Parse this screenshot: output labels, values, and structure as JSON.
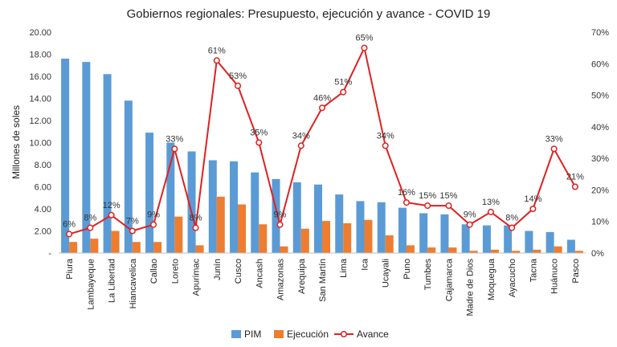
{
  "chart_data": {
    "type": "bar",
    "title": "Gobiernos regionales: Presupuesto, ejecución y avance - COVID 19",
    "ylabel": "Millones de soles",
    "y2label": "",
    "ylim": [
      0,
      20
    ],
    "y2lim": [
      0,
      70
    ],
    "y_ticks": [
      "-",
      "2.00",
      "4.00",
      "6.00",
      "8.00",
      "10.00",
      "12.00",
      "14.00",
      "16.00",
      "18.00",
      "20.00"
    ],
    "y2_ticks": [
      "0%",
      "10%",
      "20%",
      "30%",
      "40%",
      "50%",
      "60%",
      "70%"
    ],
    "grid": false,
    "legend_position": "bottom",
    "categories": [
      "Piura",
      "Lambayeque",
      "La Libertad",
      "Hiancavelica",
      "Callao",
      "Loreto",
      "Apurimac",
      "Junín",
      "Cusco",
      "Ancash",
      "Amazonas",
      "Arequipa",
      "San Martín",
      "Lima",
      "Ica",
      "Ucayali",
      "Puno",
      "Tumbes",
      "Cajamarca",
      "Madre de Dios",
      "Moquegua",
      "Ayacucho",
      "Tacna",
      "Huánuco",
      "Pasco"
    ],
    "series": [
      {
        "name": "PIM",
        "kind": "bar",
        "axis": "left",
        "color": "#5b9bd5",
        "values": [
          17.6,
          17.3,
          16.2,
          13.8,
          10.9,
          10.0,
          9.2,
          8.4,
          8.3,
          7.3,
          6.7,
          6.4,
          6.2,
          5.3,
          4.7,
          4.6,
          4.1,
          3.6,
          3.5,
          2.6,
          2.5,
          2.5,
          2.0,
          1.9,
          1.2
        ]
      },
      {
        "name": "Ejecución",
        "kind": "bar",
        "axis": "left",
        "color": "#ed7d31",
        "values": [
          1.0,
          1.3,
          2.0,
          1.0,
          1.0,
          3.3,
          0.7,
          5.1,
          4.4,
          2.6,
          0.6,
          2.2,
          2.9,
          2.7,
          3.0,
          1.6,
          0.7,
          0.5,
          0.5,
          0.2,
          0.3,
          0.2,
          0.3,
          0.6,
          0.2
        ]
      },
      {
        "name": "Avance",
        "kind": "line",
        "axis": "right",
        "color": "#e02020",
        "values": [
          6,
          8,
          12,
          7,
          9,
          33,
          8,
          61,
          53,
          35,
          9,
          34,
          46,
          51,
          65,
          34,
          16,
          15,
          15,
          9,
          13,
          8,
          14,
          33,
          21
        ],
        "labels": [
          "6%",
          "8%",
          "12%",
          "7%",
          "9%",
          "33%",
          "8%",
          "61%",
          "53%",
          "35%",
          "9%",
          "34%",
          "46%",
          "51%",
          "65%",
          "34%",
          "16%",
          "15%",
          "15%",
          "9%",
          "13%",
          "8%",
          "14%",
          "33%",
          "21%"
        ]
      }
    ]
  }
}
